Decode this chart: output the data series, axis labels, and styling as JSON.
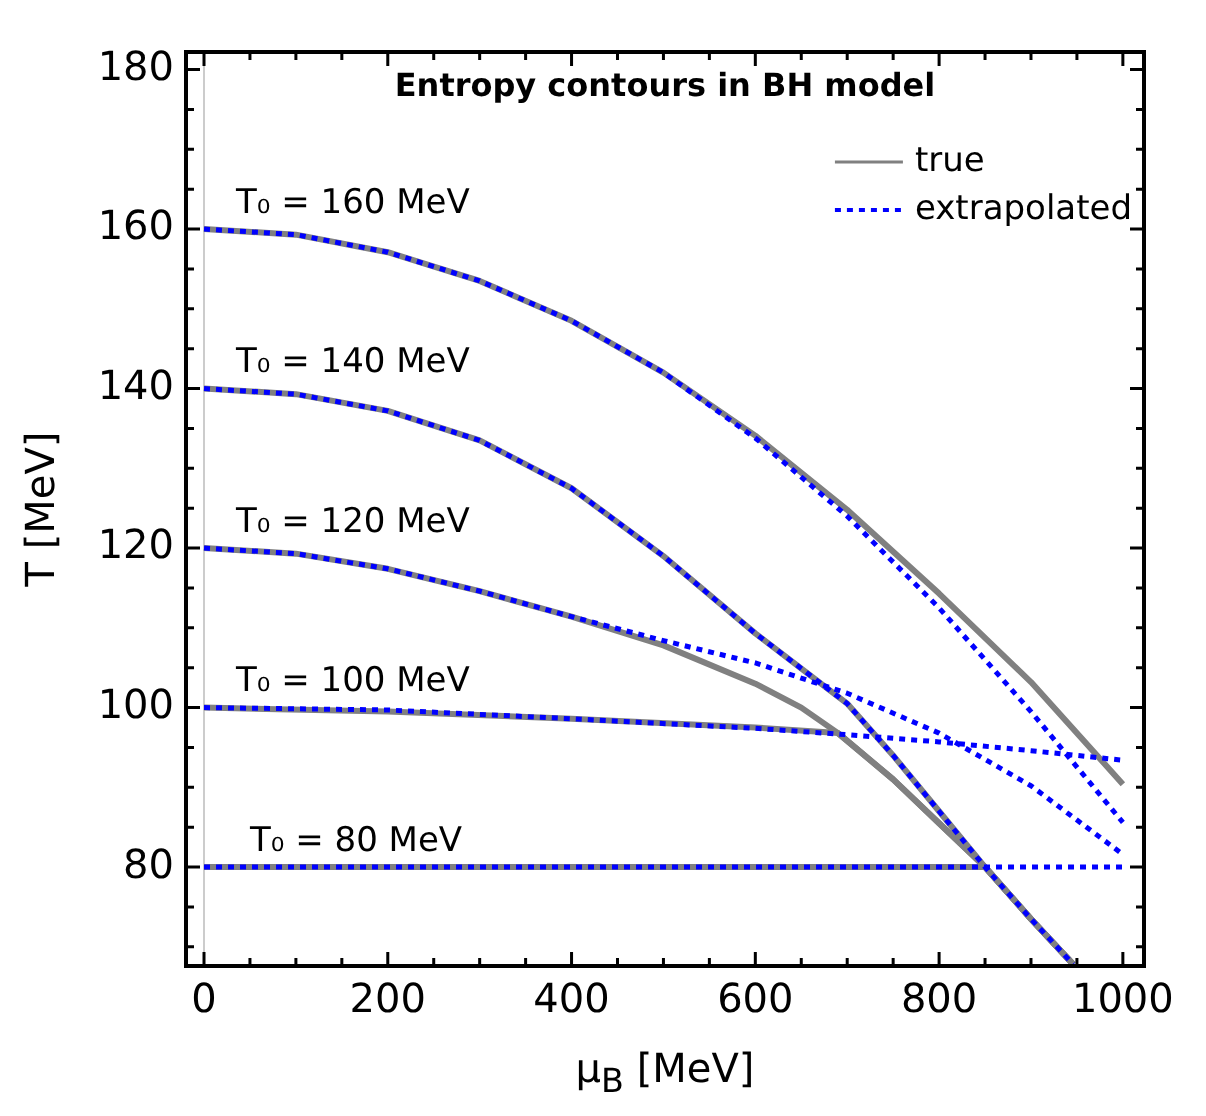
{
  "chart_data": {
    "type": "line",
    "title": "Entropy contours in BH model",
    "xlabel": "μ$_{B}$ [MeV]",
    "ylabel": "T [MeV]",
    "xlim": [
      -19.6,
      1023
    ],
    "ylim": [
      67.6,
      182.2
    ],
    "xticks": [
      0,
      {
        "value": 50,
        "label": null
      },
      200,
      {
        "value": 100,
        "label": null
      },
      {
        "value": 150,
        "label": null
      },
      {
        "value": 250,
        "label": null
      },
      {
        "value": 300,
        "label": null
      },
      {
        "value": 350,
        "label": null
      },
      400,
      {
        "value": 450,
        "label": null
      },
      {
        "value": 500,
        "label": null
      },
      {
        "value": 550,
        "label": null
      },
      600,
      {
        "value": 650,
        "label": null
      },
      {
        "value": 700,
        "label": null
      },
      {
        "value": 750,
        "label": null
      },
      800,
      {
        "value": 850,
        "label": null
      },
      {
        "value": 900,
        "label": null
      },
      {
        "value": 950,
        "label": null
      },
      1000
    ],
    "yticks": [
      {
        "value": 70,
        "label": null
      },
      {
        "value": 75,
        "label": null
      },
      80,
      {
        "value": 85,
        "label": null
      },
      {
        "value": 90,
        "label": null
      },
      {
        "value": 95,
        "label": null
      },
      100,
      {
        "value": 105,
        "label": null
      },
      {
        "value": 110,
        "label": null
      },
      {
        "value": 115,
        "label": null
      },
      120,
      {
        "value": 125,
        "label": null
      },
      {
        "value": 130,
        "label": null
      },
      {
        "value": 135,
        "label": null
      },
      140,
      {
        "value": 145,
        "label": null
      },
      {
        "value": 150,
        "label": null
      },
      {
        "value": 155,
        "label": null
      },
      160,
      {
        "value": 165,
        "label": null
      },
      {
        "value": 170,
        "label": null
      },
      {
        "value": 175,
        "label": null
      },
      180
    ],
    "grid": false,
    "legend": "top right",
    "line_style": "solid",
    "marker": "none",
    "ref_lines": [
      {
        "axis": "x",
        "value": 0,
        "color": "#cccccc"
      }
    ],
    "annotations": [
      "T₀ = 160 MeV",
      "T₀ = 140 MeV",
      "T₀ = 120 MeV",
      "T₀ = 100 MeV",
      "T₀ = 80 MeV"
    ],
    "series": [
      {
        "name": "true",
        "color": "#808080",
        "x": [
          0,
          100,
          200,
          300,
          400,
          500,
          600,
          700,
          800,
          900,
          1000
        ],
        "values": [
          160,
          159.3,
          157.1,
          153.5,
          148.5,
          142,
          134.1,
          124.8,
          114.3,
          103.2,
          90.4
        ]
      },
      {
        "name": "extrapolated",
        "color": "#0000ff",
        "line_style": "dashed",
        "x": [
          0,
          100,
          200,
          300,
          400,
          500,
          600,
          700,
          800,
          900,
          1000
        ],
        "values": [
          160,
          159.3,
          157.1,
          153.5,
          148.5,
          142,
          133.8,
          124,
          112.5,
          99.5,
          85.6
        ]
      },
      {
        "color": "#808080",
        "x": [
          0,
          100,
          200,
          300,
          400,
          500,
          600,
          700,
          750,
          800,
          850,
          900,
          946
        ],
        "values": [
          140,
          139.3,
          137.2,
          133.5,
          127.5,
          119,
          109.3,
          100.5,
          94,
          87,
          80,
          73.5,
          67.8
        ]
      },
      {
        "color": "#0000ff",
        "line_style": "dashed",
        "x": [
          0,
          100,
          200,
          300,
          400,
          500,
          600,
          700,
          750,
          800,
          850,
          900,
          946
        ],
        "values": [
          140,
          139.3,
          137.2,
          133.5,
          127.5,
          119,
          109.3,
          100.5,
          94,
          87,
          80,
          73.5,
          67.8
        ]
      },
      {
        "color": "#808080",
        "x": [
          0,
          100,
          200,
          300,
          400,
          500,
          600,
          650,
          690,
          750,
          800,
          850,
          900,
          946
        ],
        "values": [
          120,
          119.3,
          117.4,
          114.6,
          111.4,
          107.8,
          103,
          100,
          96.8,
          91,
          85.5,
          80,
          73.5,
          67.8
        ]
      },
      {
        "color": "#0000ff",
        "line_style": "dashed",
        "x": [
          0,
          100,
          200,
          300,
          400,
          500,
          600,
          700,
          800,
          900,
          1000
        ],
        "values": [
          120,
          119.3,
          117.4,
          114.6,
          111.4,
          108.4,
          105.6,
          101.8,
          96.8,
          90.2,
          81.6
        ]
      },
      {
        "color": "#808080",
        "x": [
          0,
          200,
          400,
          600,
          690,
          750,
          800,
          850,
          900,
          946
        ],
        "values": [
          100,
          99.5,
          98.6,
          97.5,
          96.8,
          91,
          85.5,
          80,
          73.5,
          67.8
        ]
      },
      {
        "color": "#0000ff",
        "line_style": "dashed",
        "x": [
          0,
          200,
          400,
          600,
          700,
          800,
          900,
          1000
        ],
        "values": [
          100,
          99.7,
          98.6,
          97.4,
          96.6,
          95.7,
          94.6,
          93.4
        ]
      },
      {
        "color": "#808080",
        "x": [
          0,
          850,
          900,
          946
        ],
        "values": [
          80,
          80,
          73.5,
          67.8
        ]
      },
      {
        "color": "#0000ff",
        "line_style": "dashed",
        "x": [
          0,
          1000
        ],
        "values": [
          80,
          80
        ]
      }
    ]
  }
}
